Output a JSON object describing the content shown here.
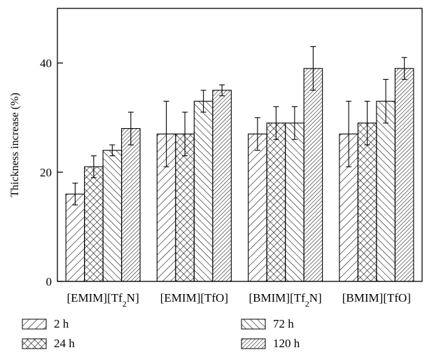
{
  "chart_data": {
    "type": "bar",
    "title": "",
    "xlabel": "",
    "ylabel": "Thickness increase (%)",
    "ylim": [
      0,
      50
    ],
    "yticks": [
      0,
      20,
      40
    ],
    "grid": false,
    "legend_position": "bottom",
    "categories": [
      {
        "prefix": "[EMIM][Tf",
        "sub": "2",
        "suffix": "N]"
      },
      {
        "prefix": "[EMIM][TfO]",
        "sub": "",
        "suffix": ""
      },
      {
        "prefix": "[BMIM][Tf",
        "sub": "2",
        "suffix": "N]"
      },
      {
        "prefix": "[BMIM][TfO]",
        "sub": "",
        "suffix": ""
      }
    ],
    "series": [
      {
        "name": "2 h",
        "pattern": "diag-right-wide",
        "values": [
          16,
          27,
          27,
          27
        ],
        "errors": [
          2,
          6,
          3,
          6
        ]
      },
      {
        "name": "24 h",
        "pattern": "crosshatch",
        "values": [
          21,
          27,
          29,
          29
        ],
        "errors": [
          2,
          4,
          3,
          4
        ]
      },
      {
        "name": "72 h",
        "pattern": "diag-left",
        "values": [
          24,
          33,
          29,
          33
        ],
        "errors": [
          1,
          2,
          3,
          4
        ]
      },
      {
        "name": "120 h",
        "pattern": "diag-right-dense",
        "values": [
          28,
          35,
          39,
          39
        ],
        "errors": [
          3,
          1,
          4,
          2
        ]
      }
    ]
  }
}
